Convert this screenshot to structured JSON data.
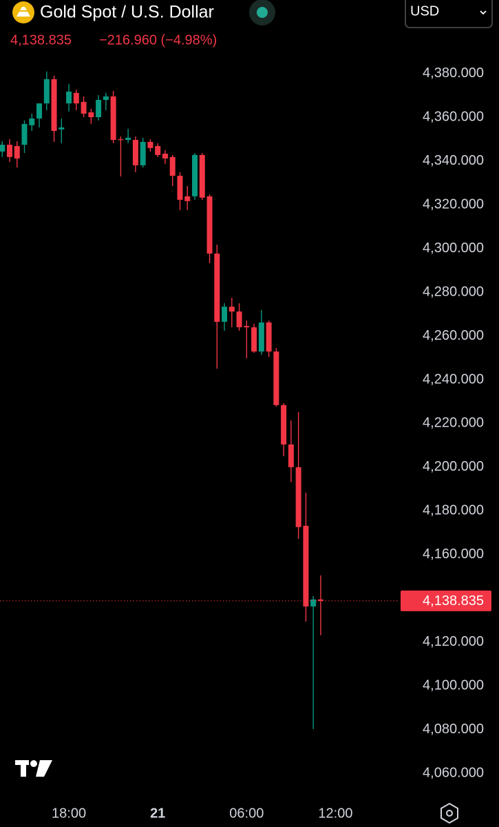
{
  "chart_data": {
    "type": "candlestick",
    "title": "Gold Spot / U.S. Dollar",
    "price": "4,138.835",
    "change": "−216.960 (−4.98%)",
    "currency": "USD",
    "up_color": "#089981",
    "down_color": "#f23645",
    "x": [
      13.5,
      14,
      14.5,
      15,
      15.5,
      16,
      16.5,
      17,
      17.5,
      18,
      18.5,
      19,
      19.5,
      20,
      20.5,
      21,
      21.5,
      22,
      22.5,
      23,
      23.5,
      24,
      24.5,
      25,
      25.5,
      26,
      26.5,
      27,
      27.5,
      28,
      28.5,
      29,
      29.5,
      30,
      30.5,
      31,
      31.5,
      32,
      32.5,
      33,
      33.5,
      34,
      34.5,
      35
    ],
    "open": [
      4344.4,
      4347.5,
      4346.9,
      4347.5,
      4356.4,
      4359.5,
      4366.4,
      4377.5,
      4354.5,
      4366.4,
      4371.2,
      4367.1,
      4362.3,
      4360.1,
      4368.0,
      4369.6,
      4350.0,
      4349.7,
      4349.7,
      4338.1,
      4348.8,
      4346.9,
      4343.4,
      4341.9,
      4333.3,
      4323.9,
      4323.9,
      4342.8,
      4323.9,
      4297.7,
      4266.5,
      4273.4,
      4271.2,
      4264.6,
      4264.0,
      4252.9,
      4266.2,
      4252.9,
      4228.4,
      4210.4,
      4200.0,
      4173.2,
      4136.3,
      4139.5
    ],
    "high": [
      4349.1,
      4350.0,
      4349.1,
      4358.6,
      4361.7,
      4366.4,
      4381.0,
      4379.1,
      4359.5,
      4375.3,
      4372.7,
      4369.6,
      4363.9,
      4370.2,
      4371.2,
      4372.1,
      4351.3,
      4354.8,
      4351.3,
      4350.7,
      4350.0,
      4348.2,
      4345.0,
      4342.8,
      4334.9,
      4328.6,
      4343.7,
      4343.7,
      4324.8,
      4301.8,
      4275.0,
      4277.5,
      4275.0,
      4267.1,
      4265.6,
      4271.9,
      4267.1,
      4254.5,
      4229.3,
      4221.4,
      4225.2,
      4188.3,
      4141.0,
      4150.5
    ],
    "low": [
      4341.9,
      4339.6,
      4337.1,
      4343.7,
      4353.8,
      4355.4,
      4363.3,
      4348.8,
      4348.2,
      4362.7,
      4363.3,
      4360.1,
      4357.0,
      4358.6,
      4363.3,
      4348.2,
      4333.0,
      4348.2,
      4334.9,
      4337.1,
      4344.4,
      4341.9,
      4338.7,
      4328.6,
      4317.6,
      4317.6,
      4322.3,
      4322.3,
      4293.3,
      4245.1,
      4262.4,
      4264.0,
      4262.4,
      4249.8,
      4252.3,
      4251.4,
      4250.4,
      4227.7,
      4205.0,
      4193.1,
      4167.2,
      4129.4,
      4080.2,
      4123.1
    ],
    "close": [
      4347.5,
      4341.9,
      4341.2,
      4357.0,
      4359.5,
      4366.4,
      4377.5,
      4353.8,
      4355.4,
      4371.8,
      4366.4,
      4361.7,
      4360.1,
      4368.0,
      4369.6,
      4349.7,
      4349.7,
      4350.7,
      4338.1,
      4348.8,
      4346.0,
      4342.8,
      4341.2,
      4333.3,
      4322.3,
      4321.7,
      4342.8,
      4323.3,
      4297.7,
      4266.5,
      4273.4,
      4271.2,
      4264.0,
      4264.0,
      4252.9,
      4266.2,
      4252.9,
      4228.4,
      4210.4,
      4200.0,
      4172.6,
      4136.3,
      4139.5,
      4138.835
    ],
    "price_line": {
      "value": 4138.835,
      "label": "4,138.835"
    },
    "xlim": [
      13.35,
      40.3
    ],
    "xticks": [
      {
        "value": 18,
        "label": "18:00"
      },
      {
        "value": 24,
        "label": "21"
      },
      {
        "value": 30,
        "label": "06:00"
      },
      {
        "value": 36,
        "label": "12:00"
      }
    ],
    "ylim": [
      4049.6,
      4413.7
    ],
    "yticks": [
      {
        "value": 4060,
        "label": "4,060.000"
      },
      {
        "value": 4080,
        "label": "4,080.000"
      },
      {
        "value": 4100,
        "label": "4,100.000"
      },
      {
        "value": 4120,
        "label": "4,120.000"
      },
      {
        "value": 4140,
        "label": "4,140.000"
      },
      {
        "value": 4160,
        "label": "4,160.000"
      },
      {
        "value": 4180,
        "label": "4,180.000"
      },
      {
        "value": 4200,
        "label": "4,200.000"
      },
      {
        "value": 4220,
        "label": "4,220.000"
      },
      {
        "value": 4240,
        "label": "4,240.000"
      },
      {
        "value": 4260,
        "label": "4,260.000"
      },
      {
        "value": 4280,
        "label": "4,280.000"
      },
      {
        "value": 4300,
        "label": "4,300.000"
      },
      {
        "value": 4320,
        "label": "4,320.000"
      },
      {
        "value": 4340,
        "label": "4,340.000"
      },
      {
        "value": 4360,
        "label": "4,360.000"
      },
      {
        "value": 4380,
        "label": "4,380.000"
      }
    ],
    "grid": false
  }
}
